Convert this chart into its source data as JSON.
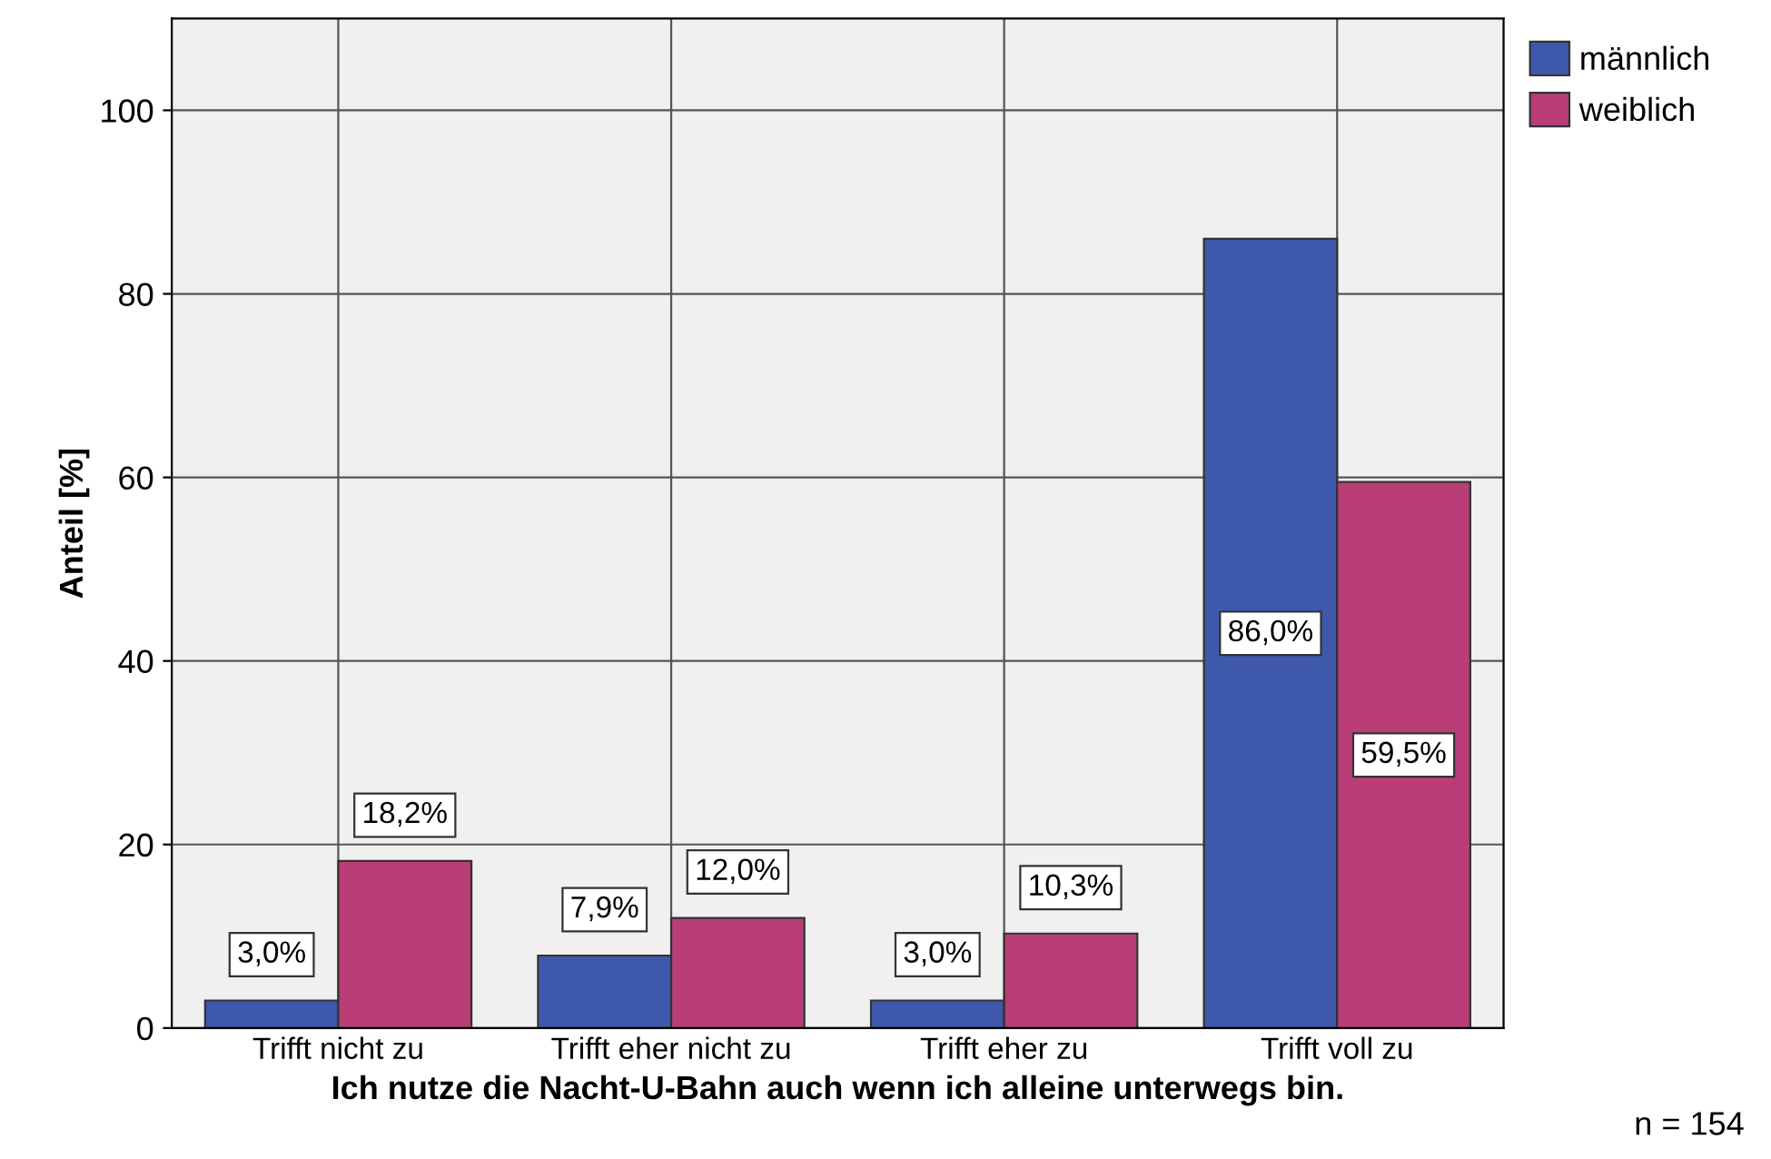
{
  "chart_data": {
    "type": "bar",
    "xlabel": "Ich nutze die Nacht-U-Bahn auch wenn ich alleine unterwegs bin.",
    "ylabel": "Anteil [%]",
    "categories": [
      "Trifft nicht zu",
      "Trifft eher nicht zu",
      "Trifft eher zu",
      "Trifft voll zu"
    ],
    "series": [
      {
        "name": "männlich",
        "color": "#3e58ac",
        "values": [
          3.0,
          7.9,
          3.0,
          86.0
        ],
        "value_labels": [
          "3,0%",
          "7,9%",
          "3,0%",
          "86,0%"
        ]
      },
      {
        "name": "weiblich",
        "color": "#b93e78",
        "values": [
          18.2,
          12.0,
          10.3,
          59.5
        ],
        "value_labels": [
          "18,2%",
          "12,0%",
          "10,3%",
          "59,5%"
        ]
      }
    ],
    "ylim": [
      0,
      110
    ],
    "yticks": [
      0,
      20,
      40,
      60,
      80,
      100
    ],
    "grid": true,
    "legend": "top right",
    "annotations": [
      "n = 154"
    ]
  }
}
